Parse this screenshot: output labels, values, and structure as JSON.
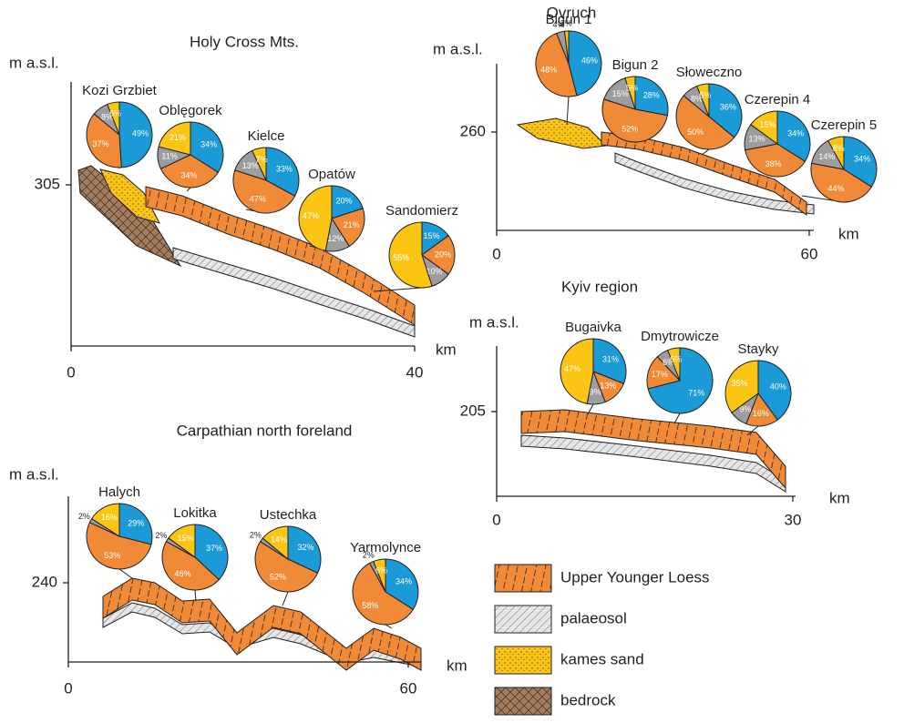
{
  "slice_colors": [
    "#1a9ad6",
    "#f08a36",
    "#9d9d9f",
    "#fcc514"
  ],
  "panels": [
    {
      "title": "Holy Cross Mts.",
      "y_label": "m a.s.l.",
      "x_label": "km",
      "x_ticks": [
        0,
        40
      ],
      "y_ticks": [
        305
      ],
      "sites": [
        {
          "name": "Kozi Grzbiet",
          "slices": [
            {
              "value": 49,
              "label": "49%"
            },
            {
              "value": 37,
              "label": "37%"
            },
            {
              "value": 8,
              "label": "8%"
            },
            {
              "value": 6,
              "label": "6%"
            }
          ]
        },
        {
          "name": "Oblęgorek",
          "slices": [
            {
              "value": 34,
              "label": "34%"
            },
            {
              "value": 34,
              "label": "34%"
            },
            {
              "value": 11,
              "label": "11%"
            },
            {
              "value": 21,
              "label": "21%"
            }
          ]
        },
        {
          "name": "Kielce",
          "slices": [
            {
              "value": 33,
              "label": "33%"
            },
            {
              "value": 47,
              "label": "47%"
            },
            {
              "value": 13,
              "label": "13%"
            },
            {
              "value": 7,
              "label": "7%"
            }
          ]
        },
        {
          "name": "Opatów",
          "slices": [
            {
              "value": 20,
              "label": "20%"
            },
            {
              "value": 21,
              "label": "21%"
            },
            {
              "value": 12,
              "label": "12%"
            },
            {
              "value": 47,
              "label": "47%"
            }
          ]
        },
        {
          "name": "Sandomierz",
          "slices": [
            {
              "value": 15,
              "label": "15%"
            },
            {
              "value": 20,
              "label": "20%"
            },
            {
              "value": 10,
              "label": "10%"
            },
            {
              "value": 55,
              "label": "55%"
            }
          ]
        }
      ]
    },
    {
      "title": "Ovruch",
      "y_label": "m a.s.l.",
      "x_label": "km",
      "x_ticks": [
        0,
        60
      ],
      "y_ticks": [
        260
      ],
      "sites": [
        {
          "name": "Bigun 1",
          "slices": [
            {
              "value": 46,
              "label": "46%"
            },
            {
              "value": 48,
              "label": "48%"
            },
            {
              "value": 4,
              "label": "4%"
            },
            {
              "value": 2,
              "label": "2%"
            }
          ]
        },
        {
          "name": "Bigun 2",
          "slices": [
            {
              "value": 28,
              "label": "28%"
            },
            {
              "value": 52,
              "label": "52%"
            },
            {
              "value": 15,
              "label": "15%"
            },
            {
              "value": 5,
              "label": "5%"
            }
          ]
        },
        {
          "name": "Słoweczno",
          "slices": [
            {
              "value": 36,
              "label": "36%"
            },
            {
              "value": 50,
              "label": "50%"
            },
            {
              "value": 8,
              "label": "8%"
            },
            {
              "value": 6,
              "label": "6%"
            }
          ]
        },
        {
          "name": "Czerepin 4",
          "slices": [
            {
              "value": 34,
              "label": "34%"
            },
            {
              "value": 38,
              "label": "38%"
            },
            {
              "value": 13,
              "label": "13%"
            },
            {
              "value": 15,
              "label": "15%"
            }
          ]
        },
        {
          "name": "Czerepin 5",
          "slices": [
            {
              "value": 34,
              "label": "34%"
            },
            {
              "value": 44,
              "label": "44%"
            },
            {
              "value": 14,
              "label": "14%"
            },
            {
              "value": 8,
              "label": "8%"
            }
          ]
        }
      ]
    },
    {
      "title": "Kyiv region",
      "y_label": "m a.s.l.",
      "x_label": "km",
      "x_ticks": [
        0,
        30
      ],
      "y_ticks": [
        205
      ],
      "sites": [
        {
          "name": "Bugaivka",
          "slices": [
            {
              "value": 31,
              "label": "31%"
            },
            {
              "value": 13,
              "label": "13%"
            },
            {
              "value": 9,
              "label": "9%"
            },
            {
              "value": 47,
              "label": "47%"
            }
          ]
        },
        {
          "name": "Dmytrowicze",
          "slices": [
            {
              "value": 71,
              "label": "71%"
            },
            {
              "value": 17,
              "label": "17%"
            },
            {
              "value": 6,
              "label": "6%"
            },
            {
              "value": 6,
              "label": "6%"
            }
          ]
        },
        {
          "name": "Stayky",
          "slices": [
            {
              "value": 40,
              "label": "40%"
            },
            {
              "value": 16,
              "label": "16%"
            },
            {
              "value": 9,
              "label": "9%"
            },
            {
              "value": 35,
              "label": "35%"
            }
          ]
        }
      ]
    },
    {
      "title": "Carpathian north foreland",
      "y_label": "m a.s.l.",
      "x_label": "km",
      "x_ticks": [
        0,
        60
      ],
      "y_ticks": [
        240
      ],
      "sites": [
        {
          "name": "Halych",
          "slices": [
            {
              "value": 29,
              "label": "29%"
            },
            {
              "value": 53,
              "label": "53%"
            },
            {
              "value": 2,
              "label": "2%"
            },
            {
              "value": 16,
              "label": "16%"
            }
          ]
        },
        {
          "name": "Lokitka",
          "slices": [
            {
              "value": 37,
              "label": "37%"
            },
            {
              "value": 46,
              "label": "46%"
            },
            {
              "value": 2,
              "label": "2%"
            },
            {
              "value": 15,
              "label": "15%"
            }
          ]
        },
        {
          "name": "Ustechka",
          "slices": [
            {
              "value": 32,
              "label": "32%"
            },
            {
              "value": 52,
              "label": "52%"
            },
            {
              "value": 2,
              "label": "2%"
            },
            {
              "value": 14,
              "label": "14%"
            }
          ]
        },
        {
          "name": "Yarmolynce",
          "slices": [
            {
              "value": 34,
              "label": "34%"
            },
            {
              "value": 58,
              "label": "58%"
            },
            {
              "value": 2,
              "label": "2%"
            },
            {
              "value": 6,
              "label": "6%"
            }
          ]
        }
      ]
    }
  ],
  "legend": [
    {
      "label": "Upper Younger Loess"
    },
    {
      "label": "palaeosol"
    },
    {
      "label": "kames sand"
    },
    {
      "label": "bedrock"
    }
  ]
}
